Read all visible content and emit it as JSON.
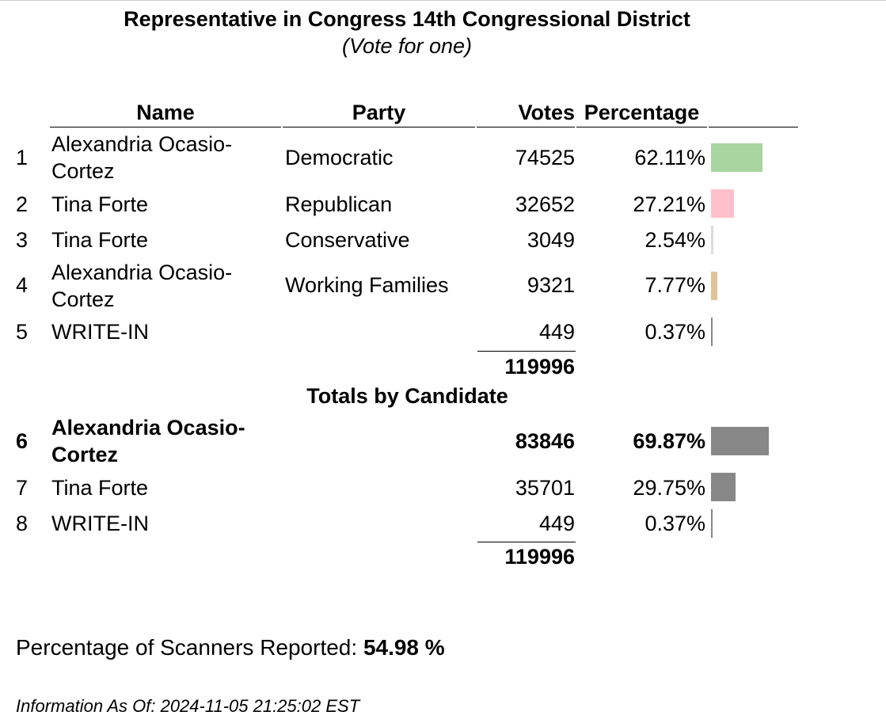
{
  "contest": {
    "title": "Representative in Congress 14th Congressional District",
    "subtitle": "(Vote for one)"
  },
  "table": {
    "headers": {
      "name": "Name",
      "party": "Party",
      "votes": "Votes",
      "percentage": "Percentage"
    },
    "rows": [
      {
        "num": "1",
        "name": "Alexandria Ocasio-Cortez",
        "party": "Democratic",
        "votes": "74525",
        "pct": "62.11%",
        "share": 0.6211,
        "color": "#a8d5a0"
      },
      {
        "num": "2",
        "name": "Tina Forte",
        "party": "Republican",
        "votes": "32652",
        "pct": "27.21%",
        "share": 0.2721,
        "color": "#ffc0cb"
      },
      {
        "num": "3",
        "name": "Tina Forte",
        "party": "Conservative",
        "votes": "3049",
        "pct": "2.54%",
        "share": 0.0254,
        "color": "#dcdcdc"
      },
      {
        "num": "4",
        "name": "Alexandria Ocasio-Cortez",
        "party": "Working Families",
        "votes": "9321",
        "pct": "7.77%",
        "share": 0.0777,
        "color": "#dfc49a"
      },
      {
        "num": "5",
        "name": "WRITE-IN",
        "party": "",
        "votes": "449",
        "pct": "0.37%",
        "share": 0.0037,
        "color": "#888888"
      }
    ],
    "total": "119996"
  },
  "totals_by_candidate": {
    "title": "Totals by Candidate",
    "rows": [
      {
        "num": "6",
        "name": "Alexandria Ocasio-Cortez",
        "votes": "83846",
        "pct": "69.87%",
        "share": 0.6987,
        "color": "#878787",
        "leader": true
      },
      {
        "num": "7",
        "name": "Tina Forte",
        "votes": "35701",
        "pct": "29.75%",
        "share": 0.2975,
        "color": "#878787",
        "leader": false
      },
      {
        "num": "8",
        "name": "WRITE-IN",
        "votes": "449",
        "pct": "0.37%",
        "share": 0.0037,
        "color": "#878787",
        "leader": false
      }
    ],
    "total": "119996"
  },
  "footer": {
    "scanners_label": "Percentage of Scanners Reported: ",
    "scanners_value": "54.98 %",
    "info_as_of": "Information As Of: 2024-11-05 21:25:02 EST"
  }
}
